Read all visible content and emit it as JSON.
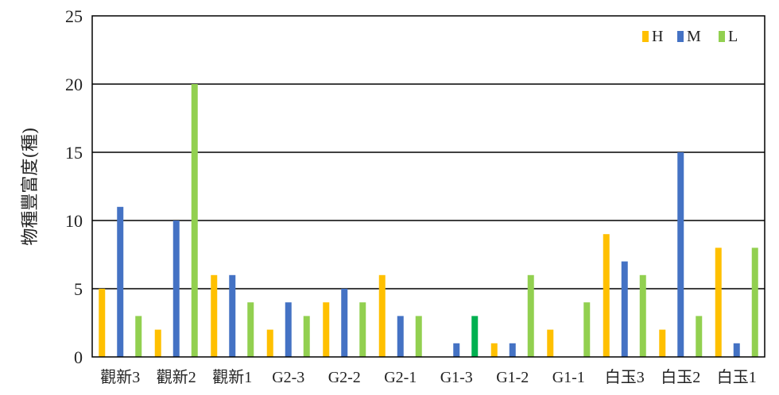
{
  "chart_data": {
    "type": "bar",
    "title": "",
    "xlabel": "",
    "ylabel": "物種豐富度(種)",
    "ylim": [
      0,
      25
    ],
    "yticks": [
      0,
      5,
      10,
      15,
      20,
      25
    ],
    "grid": true,
    "legend_position": "top-right",
    "categories": [
      "觀新3",
      "觀新2",
      "觀新1",
      "G2-3",
      "G2-2",
      "G2-1",
      "G1-3",
      "G1-2",
      "G1-1",
      "白玉3",
      "白玉2",
      "白玉1"
    ],
    "series": [
      {
        "name": "H",
        "color": "#FFC000",
        "values": [
          5,
          2,
          6,
          2,
          4,
          6,
          0,
          1,
          2,
          9,
          2,
          8
        ]
      },
      {
        "name": "M",
        "color": "#4472C4",
        "values": [
          11,
          10,
          6,
          4,
          5,
          3,
          1,
          1,
          0,
          7,
          15,
          1
        ]
      },
      {
        "name": "L",
        "color": "#92D050",
        "values": [
          3,
          20,
          4,
          3,
          4,
          3,
          3,
          6,
          4,
          6,
          3,
          8
        ]
      }
    ],
    "highlight": {
      "series": "L",
      "category": "G1-3",
      "color": "#00B050"
    }
  }
}
